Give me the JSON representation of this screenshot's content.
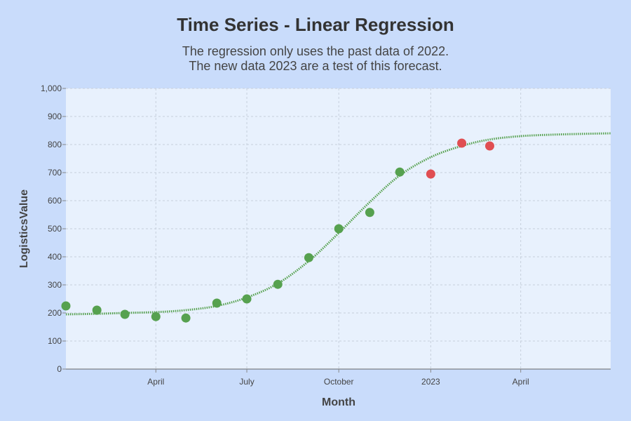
{
  "chart_data": {
    "type": "scatter",
    "title": "Time Series - Linear Regression",
    "subtitle_lines": [
      "The regression only uses the past data of 2022.",
      "The new data 2023 are a test of this forecast."
    ],
    "xlabel": "Month",
    "ylabel": "LogisticsValue",
    "ylim": [
      0,
      1000
    ],
    "yticks": [
      0,
      100,
      200,
      300,
      400,
      500,
      600,
      700,
      800,
      900,
      1000
    ],
    "ytick_labels": [
      "0",
      "100",
      "200",
      "300",
      "400",
      "500",
      "600",
      "700",
      "800",
      "900",
      "1,000"
    ],
    "xlim": [
      "2022-01-01",
      "2023-06-30"
    ],
    "xticks": [
      {
        "date": "2022-04-01",
        "label": "April"
      },
      {
        "date": "2022-07-01",
        "label": "July"
      },
      {
        "date": "2022-10-01",
        "label": "October"
      },
      {
        "date": "2023-01-01",
        "label": "2023"
      },
      {
        "date": "2023-04-01",
        "label": "April"
      }
    ],
    "grid": true,
    "series": [
      {
        "kind": "points",
        "color": "#56a14f",
        "x": [
          "2022-01-01",
          "2022-02-01",
          "2022-03-01",
          "2022-04-01",
          "2022-05-01",
          "2022-06-01",
          "2022-07-01",
          "2022-08-01",
          "2022-09-01",
          "2022-10-01",
          "2022-11-01",
          "2022-12-01"
        ],
        "y": [
          225,
          210,
          195,
          187,
          182,
          235,
          250,
          302,
          397,
          500,
          558,
          702
        ]
      },
      {
        "kind": "points",
        "color": "#e04e52",
        "x": [
          "2023-01-01",
          "2023-02-01",
          "2023-03-01"
        ],
        "y": [
          695,
          805,
          795
        ]
      },
      {
        "kind": "line",
        "color": "#56a14f",
        "style": "dotted",
        "x": [
          "2022-01-01",
          "2022-02-01",
          "2022-03-01",
          "2022-04-01",
          "2022-05-01",
          "2022-06-01",
          "2022-07-01",
          "2022-08-01",
          "2022-09-01",
          "2022-10-01",
          "2022-11-01",
          "2022-12-01",
          "2023-01-01",
          "2023-02-01",
          "2023-03-01",
          "2023-04-01",
          "2023-05-01",
          "2023-06-01",
          "2023-06-30"
        ],
        "y": [
          195,
          197,
          200,
          203,
          210,
          225,
          255,
          305,
          385,
          485,
          595,
          690,
          755,
          795,
          818,
          830,
          835,
          838,
          840
        ]
      }
    ]
  }
}
